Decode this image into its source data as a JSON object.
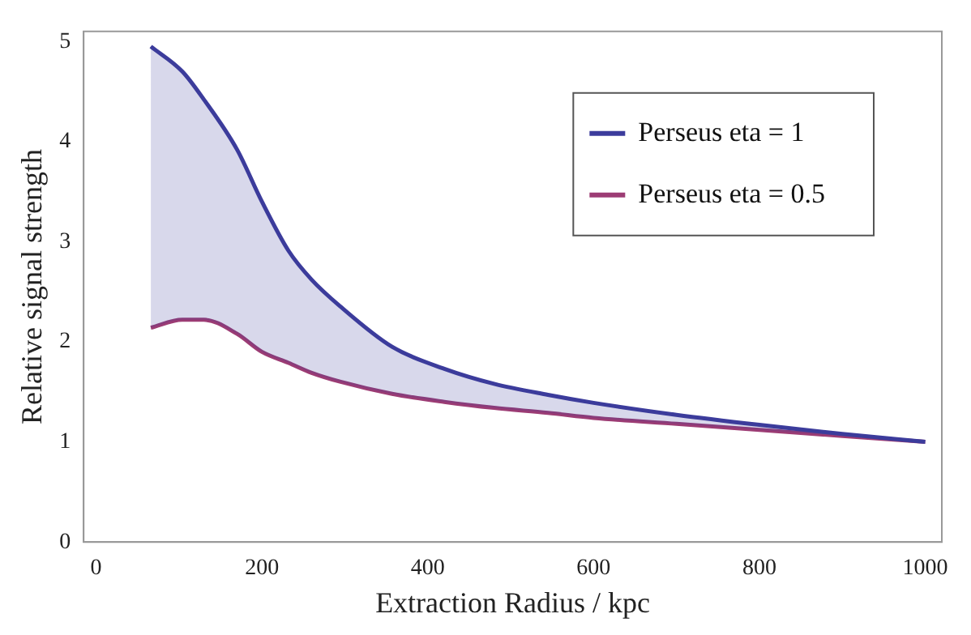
{
  "chart_data": {
    "type": "line",
    "xlabel": "Extraction Radius / kpc",
    "ylabel": "Relative signal strength",
    "x": [
      66,
      104,
      130,
      170,
      200,
      232,
      260,
      295,
      357,
      420,
      480,
      545,
      600,
      700,
      800,
      900,
      1000
    ],
    "series": [
      {
        "name": "Perseus eta = 1",
        "color": "#3c3c9c",
        "values": [
          4.95,
          4.7,
          4.42,
          3.92,
          3.4,
          2.91,
          2.62,
          2.35,
          1.95,
          1.73,
          1.58,
          1.47,
          1.39,
          1.27,
          1.17,
          1.08,
          1.0
        ],
        "lower": [
          2.14,
          2.22,
          2.22,
          2.08,
          1.9,
          1.79,
          1.69,
          1.6,
          1.48,
          1.4,
          1.34,
          1.29,
          1.24,
          1.18,
          1.12,
          1.06,
          1.0
        ],
        "upper": [
          4.95,
          4.7,
          4.42,
          3.92,
          3.4,
          2.91,
          2.62,
          2.35,
          1.95,
          1.73,
          1.58,
          1.47,
          1.39,
          1.27,
          1.17,
          1.08,
          1.0
        ]
      },
      {
        "name": "Perseus eta = 0.5",
        "color": "#9c3c74",
        "values": [
          2.14,
          2.22,
          2.22,
          2.08,
          1.9,
          1.79,
          1.69,
          1.6,
          1.48,
          1.4,
          1.34,
          1.29,
          1.24,
          1.18,
          1.12,
          1.06,
          1.0
        ]
      }
    ],
    "xlim": [
      -15,
      1020
    ],
    "ylim": [
      0,
      5.1
    ],
    "xticks": [
      0,
      200,
      400,
      600,
      800,
      1000
    ],
    "yticks": [
      0,
      1,
      2,
      3,
      4,
      5
    ],
    "grid": false,
    "legend": "top right",
    "marker": "none",
    "line_style": "solid"
  }
}
